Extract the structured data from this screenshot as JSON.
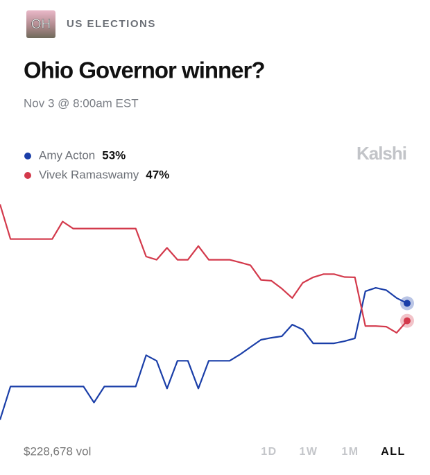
{
  "header": {
    "badge": "OH",
    "category": "US ELECTIONS"
  },
  "chart_data": {
    "type": "line",
    "title": "Ohio Governor winner?",
    "subtitle": "Nov 3 @ 8:00am EST",
    "brand": "Kalshi",
    "ylim": [
      12,
      88
    ],
    "series": [
      {
        "name": "Amy Acton",
        "color": "#1a3ea8",
        "current": {
          "value": 53,
          "label": "53%"
        },
        "values": [
          13.1,
          24.5,
          24.5,
          24.5,
          24.5,
          24.5,
          24.5,
          24.5,
          24.5,
          19,
          24.5,
          24.5,
          24.5,
          24.5,
          35.2,
          33.3,
          23.8,
          33.3,
          33.3,
          23.8,
          33.3,
          33.3,
          33.3,
          35.5,
          38,
          40.5,
          41.2,
          41.7,
          45.7,
          44,
          39.3,
          39.3,
          39.3,
          40,
          41,
          57.1,
          58.3,
          57.5,
          54.8,
          53
        ]
      },
      {
        "name": "Vivek Ramaswamy",
        "color": "#d3394b",
        "current": {
          "value": 47,
          "label": "47%"
        },
        "values": [
          86.9,
          75,
          75,
          75,
          75,
          75,
          81,
          78.6,
          78.6,
          78.6,
          78.6,
          78.6,
          78.6,
          78.6,
          69,
          67.9,
          72,
          67.9,
          67.9,
          72.6,
          67.9,
          67.9,
          67.9,
          67,
          66,
          61,
          60.7,
          58,
          54.8,
          60,
          61.9,
          63,
          63,
          62,
          61.9,
          45.2,
          45.2,
          45,
          42.9,
          47
        ]
      }
    ]
  },
  "footer": {
    "volume": "$228,678 vol",
    "ranges": [
      "1D",
      "1W",
      "1M",
      "ALL"
    ],
    "active_range": "ALL"
  }
}
